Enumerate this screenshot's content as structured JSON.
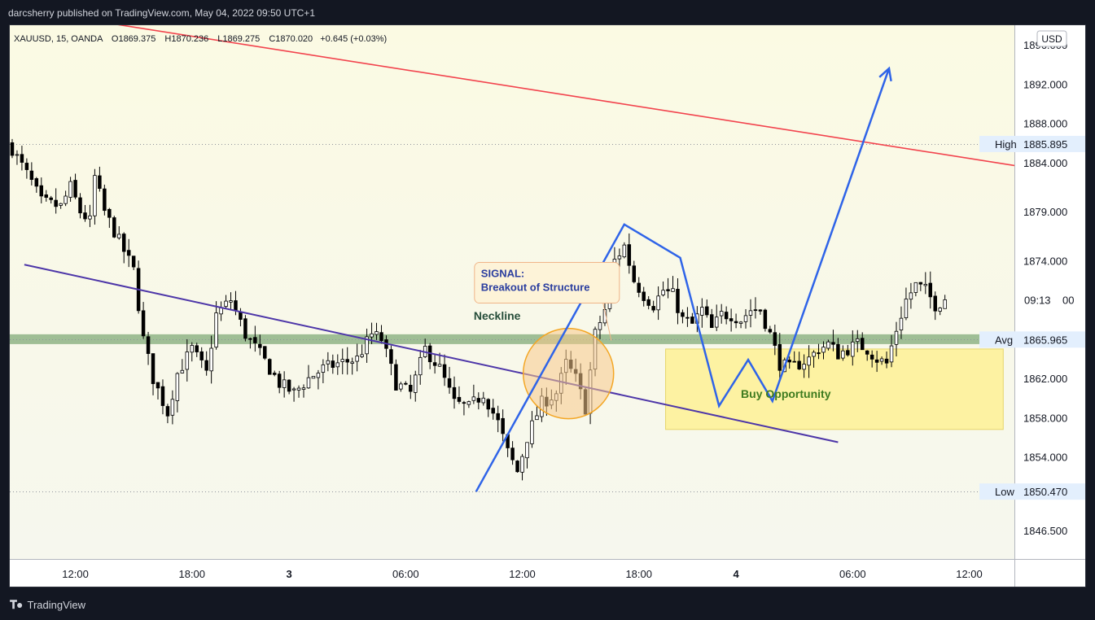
{
  "publisher": "darcsherry published on TradingView.com, May 04, 2022 09:50 UTC+1",
  "footer": {
    "logo_text": "TradingView"
  },
  "legend": {
    "symbol": "XAUUSD, 15, OANDA",
    "open": "O1869.375",
    "high": "H1870.236",
    "low": "L1869.275",
    "close": "C1870.020",
    "change": "+0.645 (+0.03%)"
  },
  "currency": "USD",
  "colors": {
    "bg_top": "#fbfae3",
    "bg_bottom": "#f6f7ee",
    "candle_up": "#ffffff",
    "candle_down": "#000000",
    "red_line": "#f2434d",
    "purple_line": "#4d36a8",
    "blue_path": "#2f64e8",
    "zone_green": "#8fb486",
    "zone_yellow": "#fdf19a",
    "circle_fill": "#f7c98a",
    "circle_stroke": "#f4a623"
  },
  "chart_data": {
    "type": "candlestick",
    "symbol": "XAUUSD",
    "interval": "15",
    "ylim": [
      1843.6,
      1898.0
    ],
    "y_ticks": [
      1846.5,
      1850.47,
      1854.0,
      1858.0,
      1862.0,
      1865.965,
      1874.0,
      1879.0,
      1884.0,
      1885.895,
      1888.0,
      1892.0,
      1896.0
    ],
    "y_tick_labels": [
      {
        "value": 1846.5,
        "text": "1846.500"
      },
      {
        "value": 1854.0,
        "text": "1854.000"
      },
      {
        "value": 1858.0,
        "text": "1858.000"
      },
      {
        "value": 1862.0,
        "text": "1862.000"
      },
      {
        "value": 1874.0,
        "text": "1874.000"
      },
      {
        "value": 1879.0,
        "text": "1879.000"
      },
      {
        "value": 1884.0,
        "text": "1884.000"
      },
      {
        "value": 1888.0,
        "text": "1888.000"
      },
      {
        "value": 1892.0,
        "text": "1892.000"
      },
      {
        "value": 1896.0,
        "text": "1896.000"
      }
    ],
    "x_ticks": [
      {
        "t": 0,
        "text": "12:00",
        "bold": false
      },
      {
        "t": 24,
        "text": "18:00",
        "bold": false
      },
      {
        "t": 44,
        "text": "3",
        "bold": true
      },
      {
        "t": 68,
        "text": "06:00",
        "bold": false
      },
      {
        "t": 92,
        "text": "12:00",
        "bold": false
      },
      {
        "t": 116,
        "text": "18:00",
        "bold": false
      },
      {
        "t": 136,
        "text": "4",
        "bold": true
      },
      {
        "t": 160,
        "text": "06:00",
        "bold": false
      },
      {
        "t": 184,
        "text": "12:00",
        "bold": false
      }
    ],
    "x_range": [
      -13.5,
      193.3
    ],
    "price_labels": [
      {
        "name": "High",
        "value": 1885.895,
        "text": "1885.895"
      },
      {
        "name": "Avg",
        "value": 1865.965,
        "text": "1865.965"
      },
      {
        "name": "Low",
        "value": 1850.47,
        "text": "1850.470"
      }
    ],
    "countdown": {
      "value": 1870.0,
      "text": "09:13",
      "suffix": "00"
    },
    "anchors": [
      {
        "t": -13.5,
        "p": 1885.9
      },
      {
        "t": -12,
        "p": 1884.5
      },
      {
        "t": -9,
        "p": 1882.0
      },
      {
        "t": -7,
        "p": 1880.0
      },
      {
        "t": -3,
        "p": 1879.5
      },
      {
        "t": -1,
        "p": 1881.5
      },
      {
        "t": 1,
        "p": 1879.0
      },
      {
        "t": 3,
        "p": 1878.0
      },
      {
        "t": 4,
        "p": 1882.5
      },
      {
        "t": 6,
        "p": 1879.0
      },
      {
        "t": 9,
        "p": 1876.0
      },
      {
        "t": 12,
        "p": 1873.0
      },
      {
        "t": 14,
        "p": 1866.0
      },
      {
        "t": 16,
        "p": 1862.0
      },
      {
        "t": 19,
        "p": 1858.5
      },
      {
        "t": 21,
        "p": 1862.5
      },
      {
        "t": 24,
        "p": 1865.0
      },
      {
        "t": 27,
        "p": 1862.5
      },
      {
        "t": 29,
        "p": 1868.5
      },
      {
        "t": 32,
        "p": 1870.0
      },
      {
        "t": 35,
        "p": 1866.5
      },
      {
        "t": 38,
        "p": 1864.5
      },
      {
        "t": 42,
        "p": 1861.5
      },
      {
        "t": 45,
        "p": 1860.5
      },
      {
        "t": 48,
        "p": 1862.0
      },
      {
        "t": 51,
        "p": 1863.0
      },
      {
        "t": 54,
        "p": 1863.5
      },
      {
        "t": 58,
        "p": 1864.0
      },
      {
        "t": 61,
        "p": 1866.5
      },
      {
        "t": 63,
        "p": 1866.0
      },
      {
        "t": 66,
        "p": 1861.5
      },
      {
        "t": 69,
        "p": 1860.5
      },
      {
        "t": 72,
        "p": 1865.0
      },
      {
        "t": 75,
        "p": 1863.0
      },
      {
        "t": 78,
        "p": 1859.5
      },
      {
        "t": 81,
        "p": 1859.0
      },
      {
        "t": 84,
        "p": 1860.5
      },
      {
        "t": 87,
        "p": 1857.5
      },
      {
        "t": 89,
        "p": 1854.5
      },
      {
        "t": 91,
        "p": 1852.5
      },
      {
        "t": 93,
        "p": 1856.0
      },
      {
        "t": 96,
        "p": 1859.5
      },
      {
        "t": 99,
        "p": 1860.5
      },
      {
        "t": 101,
        "p": 1863.5
      },
      {
        "t": 103,
        "p": 1862.0
      },
      {
        "t": 105,
        "p": 1859.0
      },
      {
        "t": 107,
        "p": 1866.5
      },
      {
        "t": 109,
        "p": 1869.0
      },
      {
        "t": 111,
        "p": 1874.0
      },
      {
        "t": 113,
        "p": 1875.5
      },
      {
        "t": 115,
        "p": 1872.0
      },
      {
        "t": 117,
        "p": 1870.5
      },
      {
        "t": 119,
        "p": 1869.5
      },
      {
        "t": 121,
        "p": 1871.0
      },
      {
        "t": 123,
        "p": 1870.5
      },
      {
        "t": 125,
        "p": 1868.0
      },
      {
        "t": 127,
        "p": 1867.5
      },
      {
        "t": 129,
        "p": 1869.0
      },
      {
        "t": 131,
        "p": 1867.0
      },
      {
        "t": 133,
        "p": 1868.5
      },
      {
        "t": 135,
        "p": 1868.5
      },
      {
        "t": 137,
        "p": 1868.0
      },
      {
        "t": 139,
        "p": 1869.0
      },
      {
        "t": 141,
        "p": 1869.0
      },
      {
        "t": 143,
        "p": 1866.5
      },
      {
        "t": 145,
        "p": 1863.5
      },
      {
        "t": 147,
        "p": 1863.0
      },
      {
        "t": 149,
        "p": 1863.5
      },
      {
        "t": 151,
        "p": 1864.0
      },
      {
        "t": 153,
        "p": 1865.0
      },
      {
        "t": 155,
        "p": 1865.5
      },
      {
        "t": 157,
        "p": 1864.5
      },
      {
        "t": 159,
        "p": 1865.0
      },
      {
        "t": 161,
        "p": 1865.5
      },
      {
        "t": 163,
        "p": 1865.0
      },
      {
        "t": 165,
        "p": 1864.0
      },
      {
        "t": 167,
        "p": 1863.5
      },
      {
        "t": 169,
        "p": 1867.0
      },
      {
        "t": 171,
        "p": 1870.0
      },
      {
        "t": 173,
        "p": 1871.5
      },
      {
        "t": 175,
        "p": 1871.0
      },
      {
        "t": 177,
        "p": 1869.5
      },
      {
        "t": 179,
        "p": 1870.0
      }
    ],
    "overlays": {
      "red_trend": [
        {
          "t": 7,
          "p": 1898.2
        },
        {
          "t": 193.3,
          "p": 1883.7
        }
      ],
      "purple_trend": [
        {
          "t": -10.5,
          "p": 1873.6
        },
        {
          "t": 157,
          "p": 1855.5
        }
      ],
      "blue_path": [
        {
          "t": 82.5,
          "p": 1850.47
        },
        {
          "t": 113,
          "p": 1877.7
        },
        {
          "t": 124.5,
          "p": 1874.3
        },
        {
          "t": 132.5,
          "p": 1859.2
        },
        {
          "t": 138.5,
          "p": 1863.9
        },
        {
          "t": 143.5,
          "p": 1859.7
        },
        {
          "t": 167.5,
          "p": 1893.6
        }
      ],
      "neckline_zone": {
        "t1": -14.0,
        "t2": 191.5,
        "p1": 1866.5,
        "p2": 1865.5
      },
      "buy_zone": {
        "t1": 121.5,
        "t2": 191.0,
        "p1": 1865.0,
        "p2": 1856.8
      },
      "signal_circle": {
        "t": 101.5,
        "p": 1862.5,
        "rt": 9.3
      }
    },
    "annotations": [
      {
        "name": "signal-text",
        "lines": [
          "SIGNAL:",
          "Breakout of Structure"
        ],
        "t": 83.5,
        "p": 1871.5
      },
      {
        "name": "neckline-text",
        "text": "Neckline",
        "t": 82.0,
        "p": 1868.0
      },
      {
        "name": "buy-opportunity-text",
        "text": "Buy Opportunity",
        "t": 137.0,
        "p": 1860.0
      }
    ]
  }
}
